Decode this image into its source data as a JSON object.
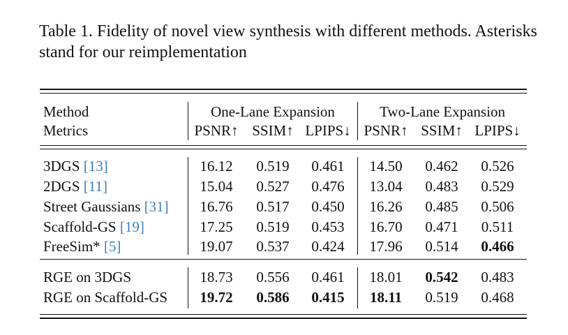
{
  "caption": {
    "label": "Table 1.",
    "text": "Fidelity of novel view synthesis with different methods. Asterisks stand for our reimplementation"
  },
  "table": {
    "header": {
      "method": "Method",
      "metrics": "Metrics",
      "groups": [
        "One-Lane Expansion",
        "Two-Lane Expansion"
      ],
      "columns": [
        "PSNR↑",
        "SSIM↑",
        "LPIPS↓",
        "PSNR↑",
        "SSIM↑",
        "LPIPS↓"
      ]
    },
    "sections": [
      [
        {
          "method": "3DGS",
          "cite": "[13]",
          "values": [
            "16.12",
            "0.519",
            "0.461",
            "14.50",
            "0.462",
            "0.526"
          ],
          "bold": []
        },
        {
          "method": "2DGS",
          "cite": "[11]",
          "values": [
            "15.04",
            "0.527",
            "0.476",
            "13.04",
            "0.483",
            "0.529"
          ],
          "bold": []
        },
        {
          "method": "Street Gaussians",
          "cite": "[31]",
          "values": [
            "16.76",
            "0.517",
            "0.450",
            "16.26",
            "0.485",
            "0.506"
          ],
          "bold": []
        },
        {
          "method": "Scaffold-GS",
          "cite": "[19]",
          "values": [
            "17.25",
            "0.519",
            "0.453",
            "16.70",
            "0.471",
            "0.511"
          ],
          "bold": []
        },
        {
          "method": "FreeSim*",
          "cite": "[5]",
          "values": [
            "19.07",
            "0.537",
            "0.424",
            "17.96",
            "0.514",
            "0.466"
          ],
          "bold": [
            5
          ]
        }
      ],
      [
        {
          "method": "RGE on 3DGS",
          "values": [
            "18.73",
            "0.556",
            "0.461",
            "18.01",
            "0.542",
            "0.483"
          ],
          "bold": [
            4
          ]
        },
        {
          "method": "RGE on Scaffold-GS",
          "values": [
            "19.72",
            "0.586",
            "0.415",
            "18.11",
            "0.519",
            "0.468"
          ],
          "bold": [
            0,
            1,
            2,
            3
          ]
        }
      ]
    ]
  }
}
